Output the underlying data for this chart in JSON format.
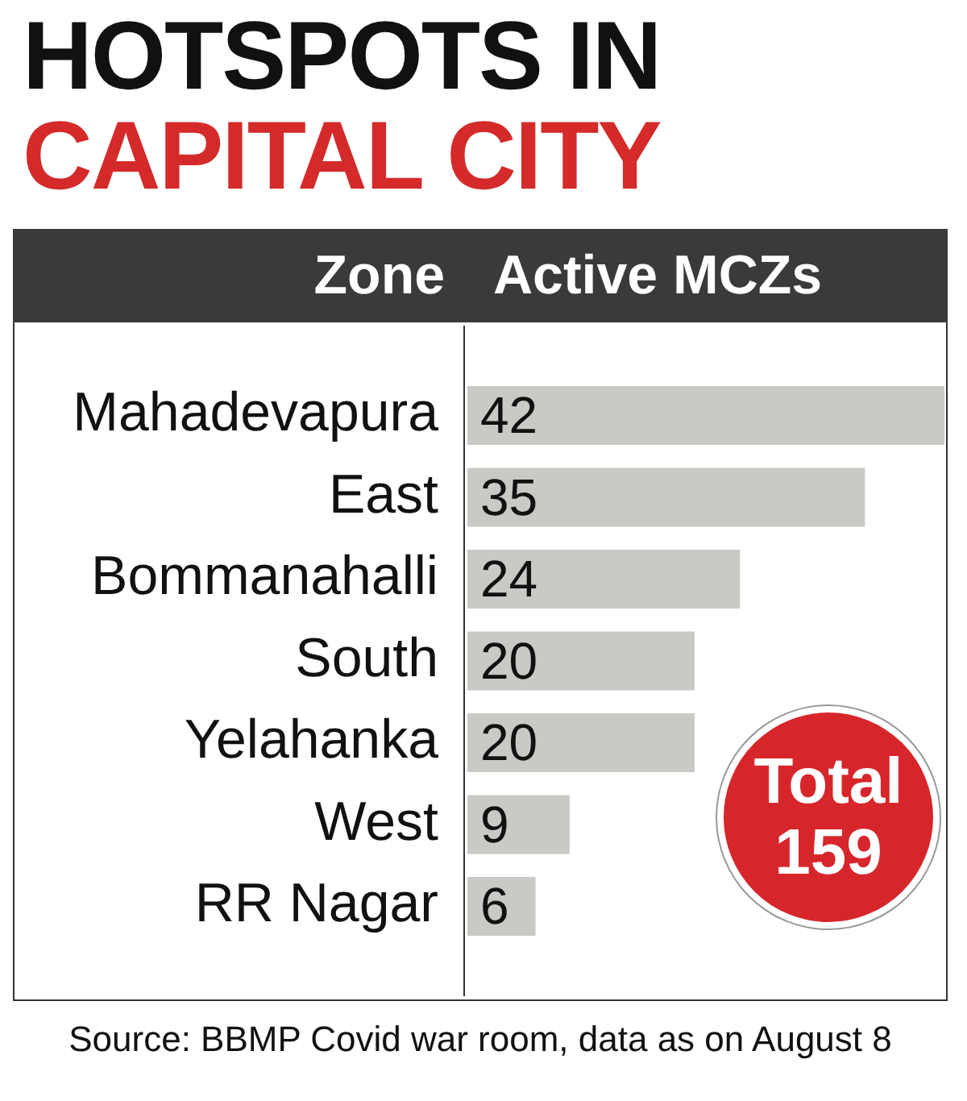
{
  "chart_data": {
    "type": "bar",
    "orientation": "horizontal",
    "title": "HOTSPOTS IN CAPITAL CITY",
    "ylabel": "Zone",
    "xlabel": "Active MCZs",
    "categories": [
      "Mahadevapura",
      "East",
      "Bommanahalli",
      "South",
      "Yelahanka",
      "West",
      "RR Nagar"
    ],
    "values": [
      42,
      35,
      24,
      20,
      20,
      9,
      6
    ],
    "color": "#c9c9c5",
    "xlim": [
      0,
      42
    ],
    "data_labels": true,
    "tick_labels": "y",
    "legend": false,
    "annotations": [
      "Total 159",
      "Source: BBMP Covid war room, data as on August 8"
    ]
  }
}
